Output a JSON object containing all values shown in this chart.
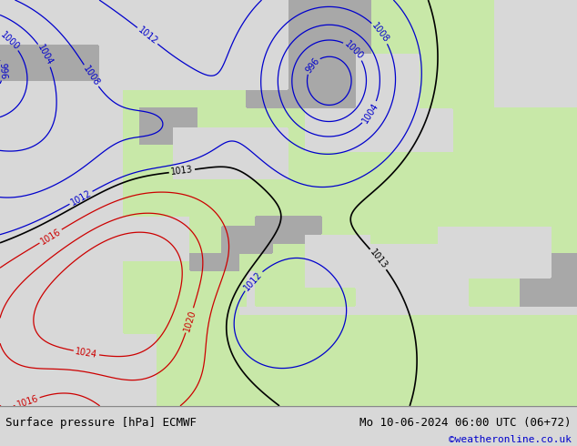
{
  "title_left": "Surface pressure [hPa] ECMWF",
  "title_right": "Mo 10-06-2024 06:00 UTC (06+72)",
  "copyright": "©weatheronline.co.uk",
  "ocean_color": "#d0d0d0",
  "land_color": "#c8e8a8",
  "mountain_color": "#a8a8a8",
  "isobar_blue_color": "#0000cc",
  "isobar_red_color": "#cc0000",
  "isobar_black_color": "#000000",
  "footer_bg": "#d8d8d8",
  "footer_text_color": "#000000",
  "copyright_color": "#0000cc",
  "font_size_footer": 9,
  "font_size_labels": 7
}
